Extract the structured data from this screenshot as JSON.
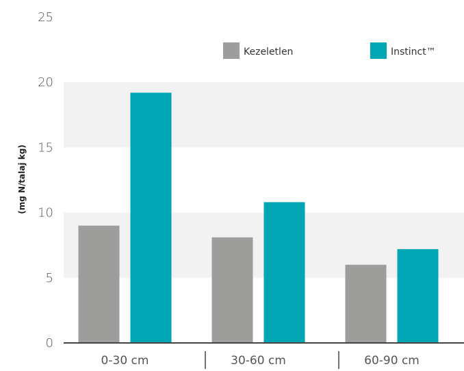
{
  "chart_data": {
    "type": "bar",
    "categories": [
      "0-30 cm",
      "30-60 cm",
      "60-90 cm"
    ],
    "series": [
      {
        "name": "Kezeletlen",
        "values": [
          9.0,
          8.1,
          6.0
        ]
      },
      {
        "name": "Instinct™",
        "values": [
          19.2,
          10.8,
          7.2
        ]
      }
    ],
    "ylabel": "(mg N/talaj kg)",
    "ylim": [
      0,
      25
    ],
    "yticks": [
      "0",
      "5",
      "10",
      "15",
      "20",
      "25"
    ],
    "legend_placement": "top-right",
    "grid": "alternating horizontal bands",
    "colors": {
      "Kezeletlen": "#9d9d9b",
      "Instinct™": "#00a6b4",
      "band": "#f2f2f2",
      "axis": "#444444"
    }
  }
}
